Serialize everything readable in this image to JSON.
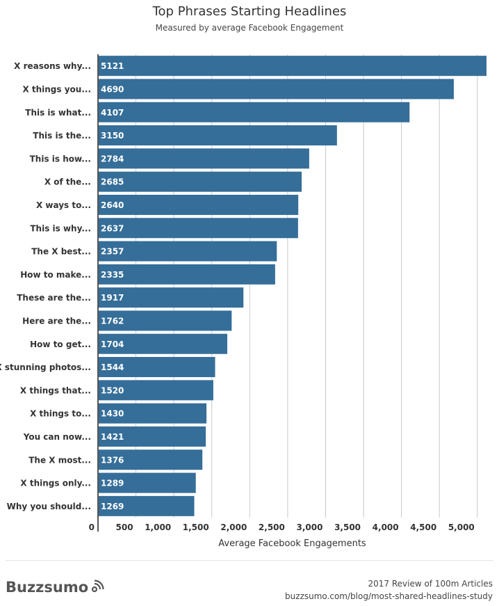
{
  "chart_data": {
    "type": "bar",
    "orientation": "horizontal",
    "title": "Top Phrases Starting Headlines",
    "subtitle": "Measured by average Facebook Engagement",
    "xlabel": "Average Facebook Engagements",
    "ylabel": "",
    "xlim": [
      0,
      5121
    ],
    "grid": true,
    "bar_color": "#356e99",
    "categories": [
      "X reasons why...",
      "X things you...",
      "This is what...",
      "This is the...",
      "This is how...",
      "X of the...",
      "X ways to...",
      "This is why...",
      "The X best...",
      "How to make...",
      "These are the...",
      "Here are the...",
      "How to get...",
      "X stunning photos...",
      "X things that...",
      "X things to...",
      "You can now...",
      "The X most...",
      "X things only...",
      "Why you should..."
    ],
    "values": [
      5121,
      4690,
      4107,
      3150,
      2784,
      2685,
      2640,
      2637,
      2357,
      2335,
      1917,
      1762,
      1704,
      1544,
      1520,
      1430,
      1421,
      1376,
      1289,
      1269
    ],
    "ticks": [
      0,
      500,
      1000,
      1500,
      2000,
      2500,
      3000,
      3500,
      4000,
      4500,
      5000
    ],
    "tick_labels": [
      "0",
      "500",
      "1,000",
      "1,500",
      "2,000",
      "2,500",
      "3,000",
      "3,500",
      "4,000",
      "4,500",
      "5,000"
    ]
  },
  "footer": {
    "brand": "Buzzsumo",
    "source_line1": "2017 Review of 100m Articles",
    "source_line2": "buzzsumo.com/blog/most-shared-headlines-study"
  }
}
